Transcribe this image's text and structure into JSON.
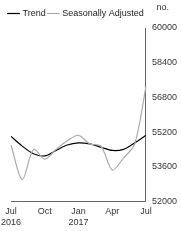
{
  "chart_data": {
    "type": "line",
    "ylabel": "no.",
    "categories": [
      "Jul 2016",
      null,
      null,
      "Oct",
      null,
      null,
      "Jan 2017",
      null,
      null,
      "Apr",
      null,
      null,
      "Jul"
    ],
    "series": [
      {
        "name": "Trend",
        "color": "#000000",
        "values": [
          55000,
          54550,
          54200,
          54100,
          54350,
          54600,
          54700,
          54650,
          54500,
          54350,
          54400,
          54700,
          55050
        ]
      },
      {
        "name": "Seasonally Adjusted",
        "color": "#aaaaaa",
        "values": [
          54600,
          53000,
          54400,
          53950,
          54400,
          54800,
          55050,
          54650,
          54550,
          53450,
          54000,
          54650,
          57300
        ]
      }
    ],
    "ylim": [
      52000,
      60000
    ],
    "yticks": [
      52000,
      53600,
      55200,
      56800,
      58400,
      60000
    ],
    "grid": false,
    "legend": "top-left"
  }
}
